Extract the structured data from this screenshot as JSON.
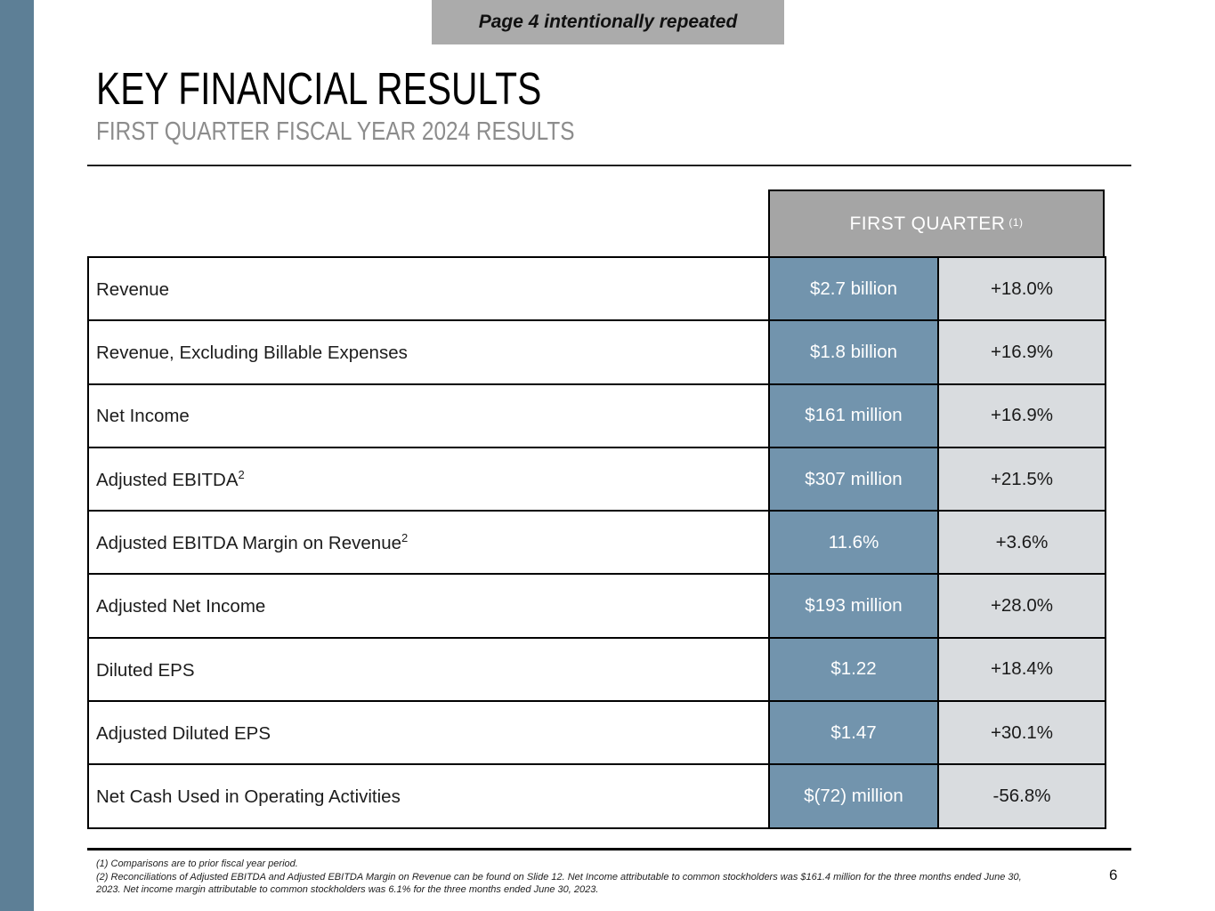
{
  "banner": {
    "text": "Page 4 intentionally repeated"
  },
  "header": {
    "title": "KEY FINANCIAL RESULTS",
    "subtitle": "FIRST QUARTER FISCAL YEAR 2024 RESULTS"
  },
  "table": {
    "column_header": {
      "text": "FIRST QUARTER",
      "sup": "(1)"
    },
    "rows": [
      {
        "label": "Revenue",
        "value": "$2.7 billion",
        "change": "+18.0%"
      },
      {
        "label": "Revenue, Excluding Billable Expenses",
        "value": "$1.8 billion",
        "change": "+16.9%"
      },
      {
        "label": "Net Income",
        "value": "$161 million",
        "change": "+16.9%"
      },
      {
        "label": "Adjusted EBITDA",
        "sup": "2",
        "value": "$307 million",
        "change": "+21.5%"
      },
      {
        "label": "Adjusted EBITDA Margin on Revenue",
        "sup": "2",
        "value": "11.6%",
        "change": "+3.6%"
      },
      {
        "label": "Adjusted Net Income",
        "value": "$193 million",
        "change": "+28.0%"
      },
      {
        "label": "Diluted EPS",
        "value": "$1.22",
        "change": "+18.4%"
      },
      {
        "label": "Adjusted Diluted EPS",
        "value": "$1.47",
        "change": "+30.1%"
      },
      {
        "label": "Net Cash Used in Operating Activities",
        "value": "$(72) million",
        "change": "-56.8%"
      }
    ]
  },
  "footnotes": {
    "note1": "(1) Comparisons are to prior fiscal year period.",
    "note2": "(2) Reconciliations of Adjusted EBITDA and Adjusted EBITDA Margin on Revenue can be found on Slide 12. Net Income attributable to common stockholders was $161.4 million for the three months ended June 30, 2023.  Net income margin attributable to common stockholders was 6.1% for the three months ended June 30, 2023."
  },
  "page_number": "6",
  "colors": {
    "accent_bar": "#5d7f96",
    "value_cell": "#7294ad",
    "change_cell": "#d9dcdf",
    "header_cell": "#a5a5a5",
    "banner": "#ababab"
  }
}
